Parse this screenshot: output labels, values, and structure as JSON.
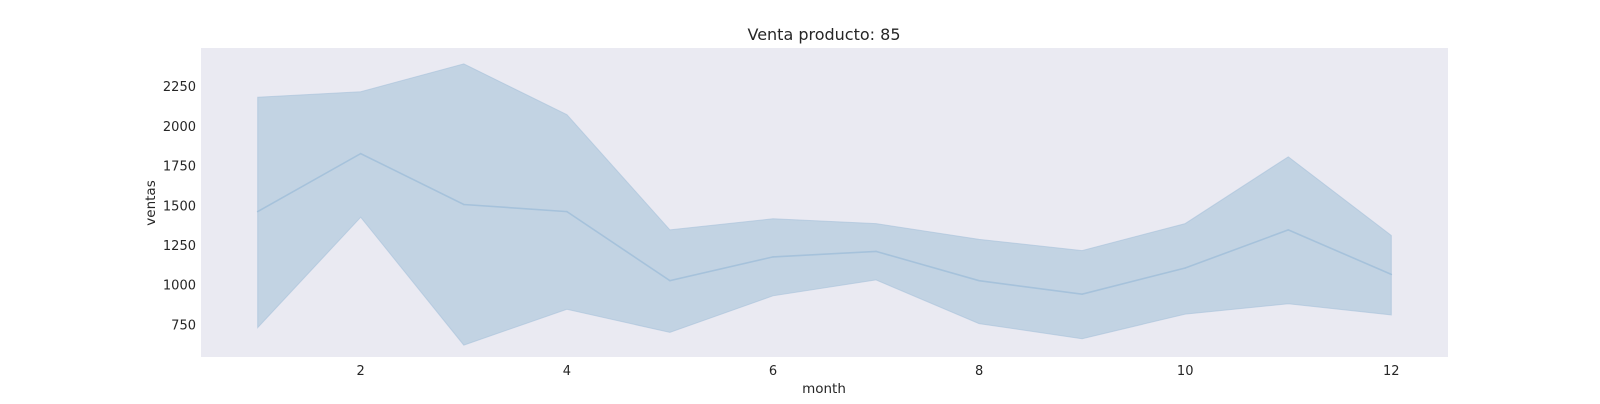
{
  "chart_data": {
    "type": "line",
    "title": "Venta producto: 85",
    "xlabel": "month",
    "ylabel": "ventas",
    "xlim": [
      0.45,
      12.55
    ],
    "ylim": [
      545,
      2490
    ],
    "grid": false,
    "x": [
      1,
      2,
      3,
      4,
      5,
      6,
      7,
      8,
      9,
      10,
      11,
      12
    ],
    "series": [
      {
        "values": [
          1460,
          1825,
          1505,
          1460,
          1025,
          1175,
          1210,
          1025,
          940,
          1105,
          1345,
          1065
        ],
        "lower": [
          730,
          1425,
          620,
          845,
          700,
          930,
          1030,
          755,
          660,
          815,
          880,
          810
        ],
        "upper": [
          2180,
          2215,
          2390,
          2070,
          1345,
          1415,
          1385,
          1285,
          1215,
          1385,
          1805,
          1310
        ]
      }
    ],
    "x_ticks": [
      "2",
      "4",
      "6",
      "8",
      "10",
      "12"
    ],
    "x_tick_values": [
      2,
      4,
      6,
      8,
      10,
      12
    ],
    "y_ticks": [
      "750",
      "1000",
      "1250",
      "1500",
      "1750",
      "2000",
      "2250"
    ],
    "y_tick_values": [
      750,
      1000,
      1250,
      1500,
      1750,
      2000,
      2250
    ],
    "colors": {
      "background": "#eaeaf2",
      "line": "#a6c2db",
      "band": "#c2d3e3"
    }
  }
}
